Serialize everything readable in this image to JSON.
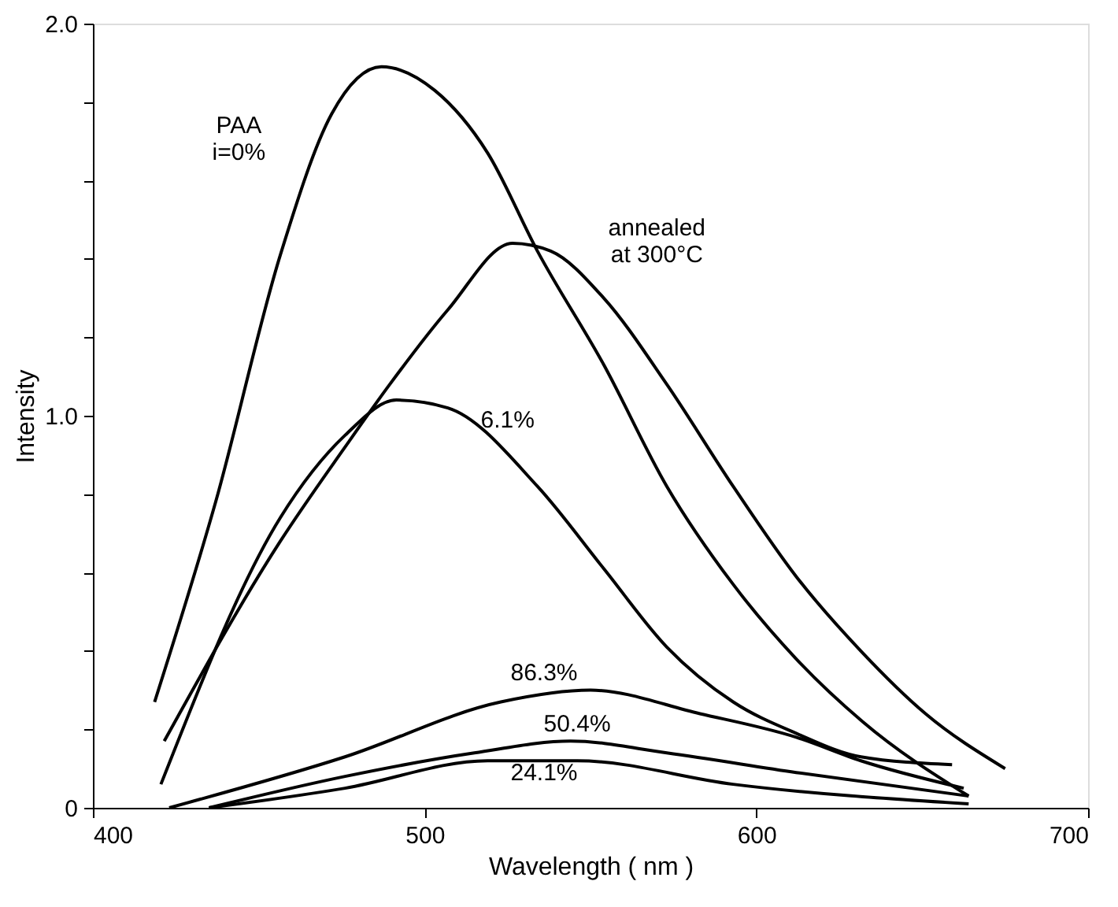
{
  "chart_data": {
    "type": "line",
    "xlabel": "Wavelength ( nm )",
    "ylabel": "Intensity",
    "xlim": [
      400,
      700
    ],
    "ylim": [
      0,
      2.0
    ],
    "xticks": [
      400,
      500,
      600,
      700
    ],
    "yticks": [
      0,
      {
        "value": 0.2,
        "label": null
      },
      {
        "value": 0.4,
        "label": null
      },
      {
        "value": 0.6,
        "label": null
      },
      {
        "value": 0.8,
        "label": null
      },
      {
        "value": 1.0,
        "label": "1.0"
      },
      {
        "value": 1.2,
        "label": null
      },
      {
        "value": 1.4,
        "label": null
      },
      {
        "value": 1.6,
        "label": null
      },
      {
        "value": 1.8,
        "label": null
      },
      {
        "value": 2.0,
        "label": "2.0"
      }
    ],
    "grid": false,
    "marker": "none",
    "line_style": "solid",
    "series": [
      {
        "name": "PAA\ni=0%",
        "color": "#000000",
        "x": [
          418.6,
          437,
          456.5,
          472,
          487,
          503,
          519,
          534,
          554,
          573,
          593,
          612,
          632,
          664
        ],
        "values": [
          0.27,
          0.78,
          1.41,
          1.77,
          1.89,
          1.83,
          1.67,
          1.42,
          1.13,
          0.82,
          0.57,
          0.38,
          0.22,
          0.03
        ]
      },
      {
        "name": "annealed\n   at 300°C",
        "color": "#000000",
        "x": [
          421.5,
          456.5,
          476,
          489.5,
          507,
          526.5,
          538,
          554,
          573,
          593,
          612,
          631.5,
          651,
          675
        ],
        "values": [
          0.17,
          0.68,
          0.92,
          1.08,
          1.27,
          1.44,
          1.42,
          1.3,
          1.08,
          0.82,
          0.59,
          0.4,
          0.24,
          0.1
        ]
      },
      {
        "name": "6.1%",
        "color": "#000000",
        "x": [
          420.5,
          456.5,
          476,
          491.5,
          507,
          534,
          554,
          573,
          593,
          612,
          631.5,
          659
        ],
        "values": [
          0.06,
          0.74,
          0.95,
          1.04,
          1.02,
          0.82,
          0.61,
          0.41,
          0.27,
          0.19,
          0.13,
          0.11
        ]
      },
      {
        "name": "86.3%",
        "color": "#000000",
        "x": [
          423,
          476,
          523,
          550,
          583,
          612,
          631.5,
          662.5
        ],
        "values": [
          0.0,
          0.13,
          0.27,
          0.3,
          0.24,
          0.18,
          0.12,
          0.05
        ]
      },
      {
        "name": "50.4%",
        "color": "#000000",
        "x": [
          435,
          476,
          515,
          544,
          573,
          612,
          664
        ],
        "values": [
          0.0,
          0.08,
          0.14,
          0.17,
          0.14,
          0.09,
          0.03
        ]
      },
      {
        "name": "24.1%",
        "color": "#000000",
        "x": [
          435,
          476,
          519,
          546,
          593,
          664
        ],
        "values": [
          0.0,
          0.05,
          0.12,
          0.12,
          0.06,
          0.01
        ]
      }
    ]
  }
}
